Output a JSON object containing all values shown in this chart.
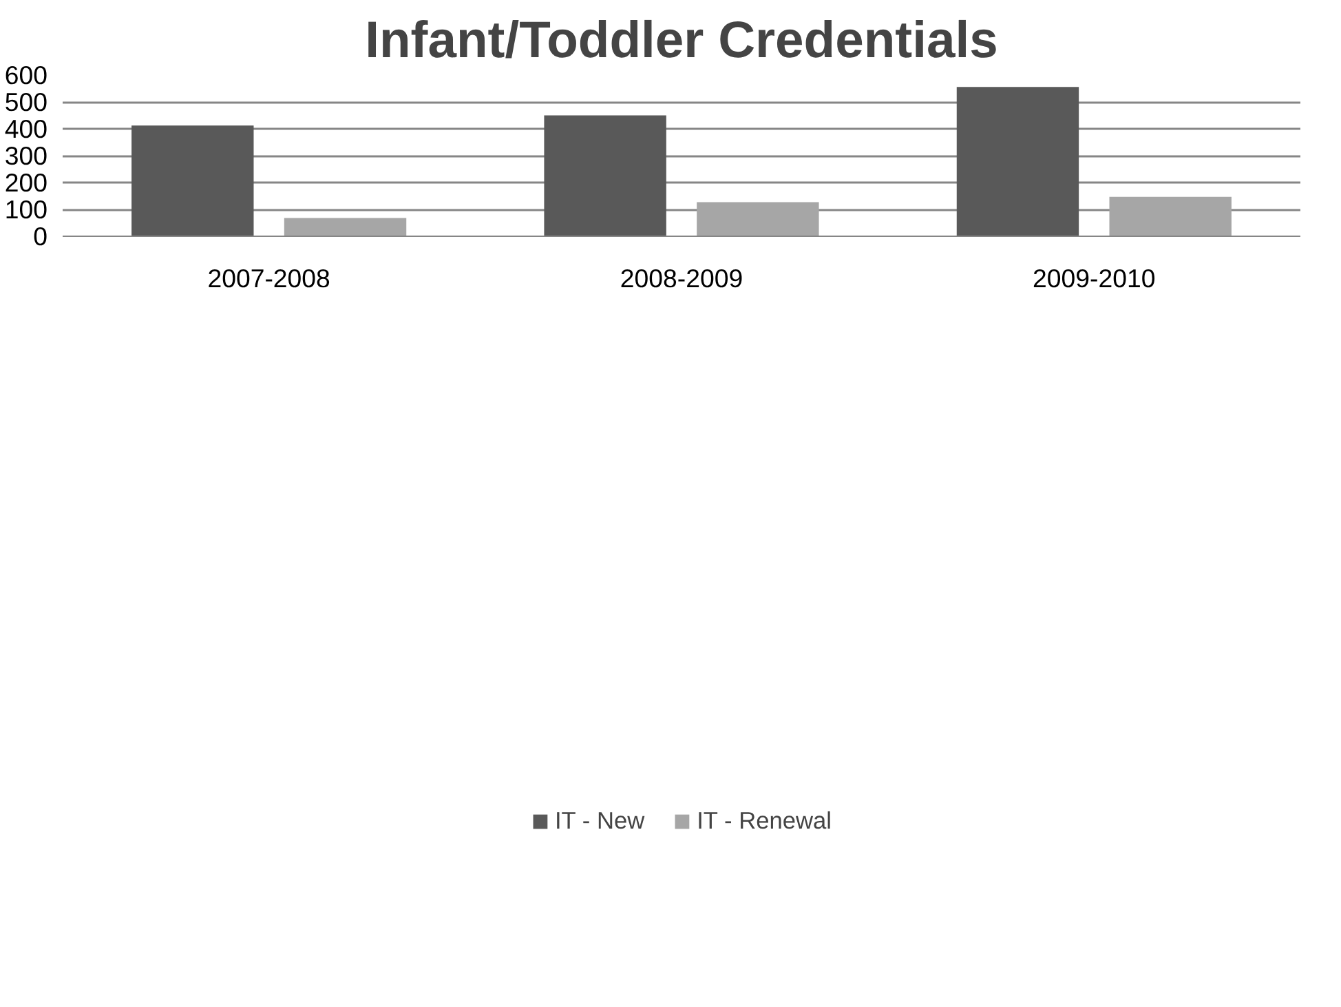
{
  "chart_data": {
    "type": "bar",
    "title": "Infant/Toddler Credentials",
    "categories": [
      "2007-2008",
      "2008-2009",
      "2009-2010"
    ],
    "series": [
      {
        "name": "IT - New",
        "color": "#595959",
        "values": [
          412,
          450,
          556
        ]
      },
      {
        "name": "IT - Renewal",
        "color": "#a6a6a6",
        "values": [
          68,
          127,
          147
        ]
      }
    ],
    "ylim": [
      0,
      600
    ],
    "yticks": [
      0,
      100,
      200,
      300,
      400,
      500,
      600
    ],
    "grid": "y",
    "legend": "bottom"
  }
}
